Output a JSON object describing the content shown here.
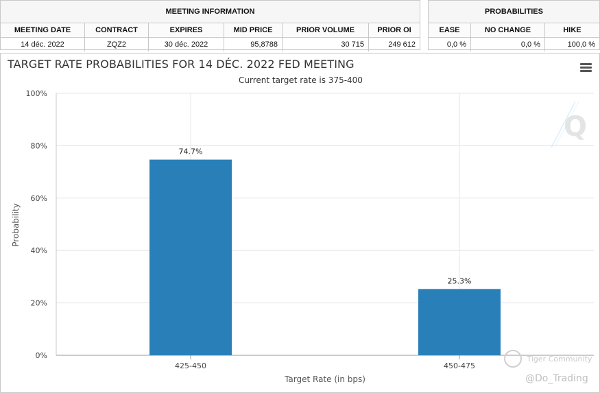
{
  "meeting_info": {
    "title": "MEETING INFORMATION",
    "columns": [
      "MEETING DATE",
      "CONTRACT",
      "EXPIRES",
      "MID PRICE",
      "PRIOR VOLUME",
      "PRIOR OI"
    ],
    "values": [
      "14 déc. 2022",
      "ZQZ2",
      "30 déc. 2022",
      "95,8788",
      "30 715",
      "249 612"
    ]
  },
  "probabilities": {
    "title": "PROBABILITIES",
    "columns": [
      "EASE",
      "NO CHANGE",
      "HIKE"
    ],
    "values": [
      "0,0 %",
      "0,0 %",
      "100,0 %"
    ]
  },
  "chart_data": {
    "type": "bar",
    "title": "TARGET RATE PROBABILITIES FOR 14 DÉC. 2022 FED MEETING",
    "subtitle": "Current target rate is 375-400",
    "categories": [
      "425-450",
      "450-475"
    ],
    "values": [
      74.7,
      25.3
    ],
    "data_labels": [
      "74.7%",
      "25.3%"
    ],
    "xlabel": "Target Rate (in bps)",
    "ylabel": "Probability",
    "ylim": [
      0,
      100
    ],
    "yticks": [
      0,
      20,
      40,
      60,
      80,
      100
    ],
    "ytick_labels": [
      "0%",
      "20%",
      "40%",
      "60%",
      "80%",
      "100%"
    ],
    "grid": true,
    "bar_color": "#2980b9",
    "grid_color": "#e6e6e6"
  },
  "watermarks": {
    "brand_letter": "Q",
    "community": "Tiger Community",
    "handle": "@Do_Trading"
  }
}
